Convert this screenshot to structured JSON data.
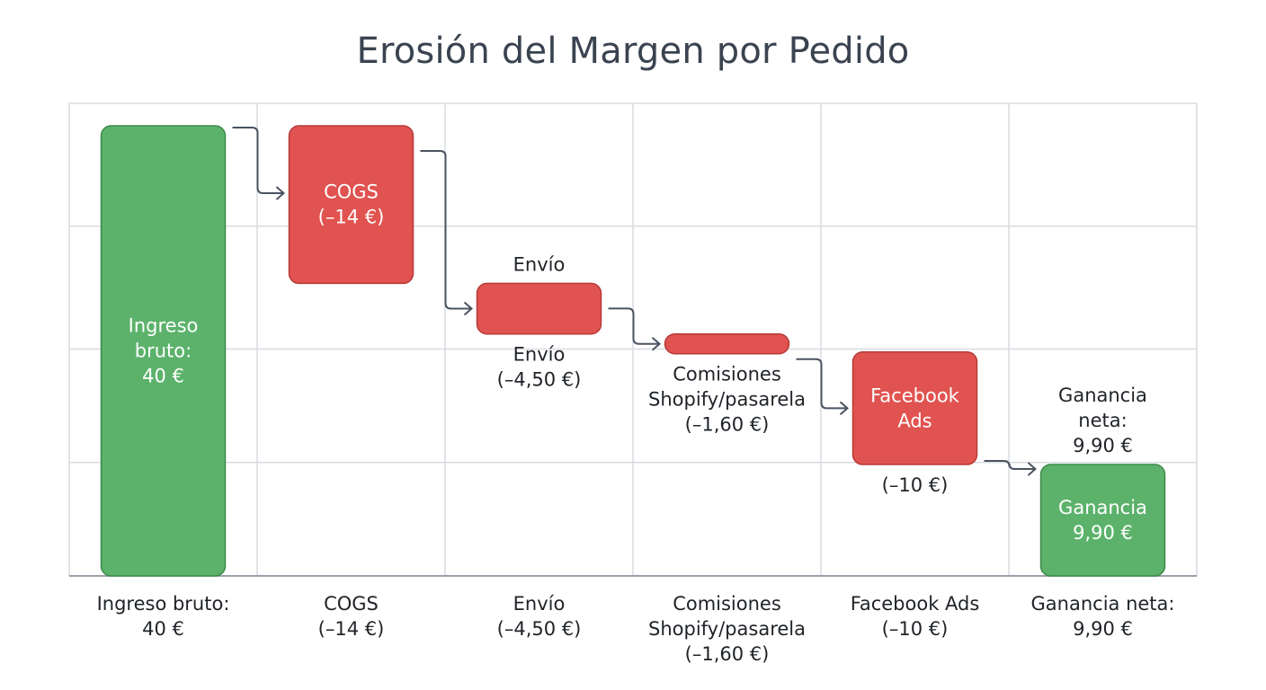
{
  "chart_data": {
    "type": "bar",
    "title": "Erosión del Margen por Pedido",
    "xlabel": "",
    "ylabel": "",
    "ylim": [
      0,
      42
    ],
    "grid": true,
    "colors": {
      "positive": "#5cb26b",
      "negative": "#e05350",
      "positive_stroke": "#3d8a4b",
      "negative_stroke": "#b53b38",
      "grid": "#d9dce1",
      "connector": "#4a5460"
    },
    "steps": [
      {
        "category": [
          "Ingreso bruto:",
          "40 €"
        ],
        "kind": "total",
        "value": 40,
        "inner_label": [
          "Ingreso",
          "bruto:",
          "40 €"
        ],
        "above_label": [],
        "below_label": []
      },
      {
        "category": [
          "COGS",
          "(–14 €)"
        ],
        "kind": "decrease",
        "value": -14,
        "inner_label": [
          "COGS",
          "(–14 €)"
        ],
        "above_label": [],
        "below_label": []
      },
      {
        "category": [
          "Envío",
          "(–4,50 €)"
        ],
        "kind": "decrease",
        "value": -4.5,
        "inner_label": [],
        "above_label": [
          "Envío"
        ],
        "below_label": [
          "Envío",
          "(–4,50 €)"
        ]
      },
      {
        "category": [
          "Comisiones",
          "Shopify/pasarela",
          "(–1,60 €)"
        ],
        "kind": "decrease",
        "value": -1.6,
        "inner_label": [],
        "above_label": [],
        "below_label": [
          "Comisiones",
          "Shopify/pasarela",
          "(–1,60 €)"
        ]
      },
      {
        "category": [
          "Facebook Ads",
          "(–10 €)"
        ],
        "kind": "decrease",
        "value": -10,
        "inner_label": [
          "Facebook",
          "Ads"
        ],
        "above_label": [],
        "below_label": [
          "(–10 €)"
        ]
      },
      {
        "category": [
          "Ganancia neta:",
          "9,90 €"
        ],
        "kind": "total",
        "value": 9.9,
        "inner_label": [
          "Ganancia",
          "9,90 €"
        ],
        "above_label": [
          "Ganancia",
          "neta:",
          "9,90 €"
        ],
        "below_label": []
      }
    ]
  }
}
